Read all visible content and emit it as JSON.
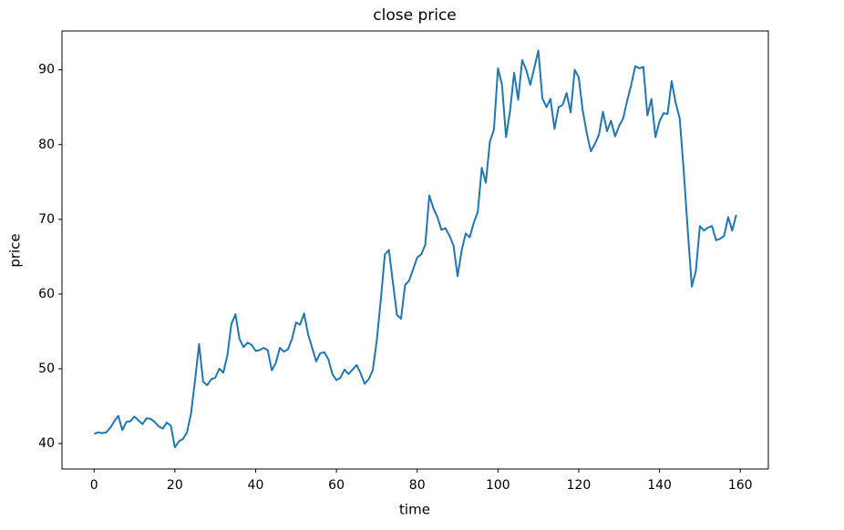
{
  "chart_data": {
    "type": "line",
    "title": "close price",
    "x_label": "time",
    "y_label": "price",
    "color": "#1f77b4",
    "x": [
      0,
      1,
      2,
      3,
      4,
      5,
      6,
      7,
      8,
      9,
      10,
      11,
      12,
      13,
      14,
      15,
      16,
      17,
      18,
      19,
      20,
      21,
      22,
      23,
      24,
      25,
      26,
      27,
      28,
      29,
      30,
      31,
      32,
      33,
      34,
      35,
      36,
      37,
      38,
      39,
      40,
      41,
      42,
      43,
      44,
      45,
      46,
      47,
      48,
      49,
      50,
      51,
      52,
      53,
      54,
      55,
      56,
      57,
      58,
      59,
      60,
      61,
      62,
      63,
      64,
      65,
      66,
      67,
      68,
      69,
      70,
      71,
      72,
      73,
      74,
      75,
      76,
      77,
      78,
      79,
      80,
      81,
      82,
      83,
      84,
      85,
      86,
      87,
      88,
      89,
      90,
      91,
      92,
      93,
      94,
      95,
      96,
      97,
      98,
      99,
      100,
      101,
      102,
      103,
      104,
      105,
      106,
      107,
      108,
      109,
      110,
      111,
      112,
      113,
      114,
      115,
      116,
      117,
      118,
      119,
      120,
      121,
      122,
      123,
      124,
      125,
      126,
      127,
      128,
      129,
      130,
      131,
      132,
      133,
      134,
      135,
      136,
      137,
      138,
      139,
      140,
      141,
      142,
      143,
      144,
      145,
      146,
      147,
      148,
      149,
      150,
      151,
      152,
      153,
      154,
      155,
      156,
      157,
      158,
      159
    ],
    "values": [
      41.3,
      41.5,
      41.4,
      41.5,
      42.1,
      43.0,
      43.7,
      41.8,
      42.9,
      43.0,
      43.6,
      43.1,
      42.6,
      43.4,
      43.3,
      42.9,
      42.3,
      42.0,
      42.8,
      42.4,
      39.5,
      40.3,
      40.6,
      41.5,
      44.0,
      48.5,
      53.3,
      48.3,
      47.8,
      48.6,
      48.8,
      50.0,
      49.5,
      51.8,
      56.0,
      57.3,
      54.0,
      52.9,
      53.5,
      53.2,
      52.4,
      52.5,
      52.8,
      52.5,
      49.8,
      50.8,
      52.8,
      52.3,
      52.6,
      54.0,
      56.2,
      55.9,
      57.4,
      54.6,
      52.8,
      51.0,
      52.1,
      52.2,
      51.3,
      49.3,
      48.5,
      48.8,
      49.9,
      49.3,
      49.9,
      50.5,
      49.4,
      48.0,
      48.6,
      49.8,
      53.8,
      59.3,
      65.3,
      65.9,
      61.5,
      57.2,
      56.7,
      61.2,
      61.8,
      63.3,
      64.9,
      65.3,
      66.6,
      73.2,
      71.5,
      70.3,
      68.6,
      68.8,
      67.8,
      66.5,
      62.4,
      65.8,
      68.1,
      67.6,
      69.5,
      71.0,
      76.9,
      74.9,
      80.4,
      82.0,
      90.2,
      88.0,
      81.0,
      84.5,
      89.6,
      86.0,
      91.3,
      90.0,
      88.0,
      90.3,
      92.6,
      86.2,
      85.0,
      86.1,
      82.1,
      85.0,
      85.3,
      86.9,
      84.3,
      90.0,
      89.0,
      84.5,
      81.5,
      79.1,
      80.1,
      81.3,
      84.4,
      81.8,
      83.2,
      81.1,
      82.5,
      83.5,
      85.9,
      88.0,
      90.5,
      90.2,
      90.4,
      83.9,
      86.1,
      81.0,
      83.1,
      84.2,
      84.1,
      88.5,
      85.6,
      83.5,
      76.5,
      68.5,
      61.0,
      63.1,
      69.1,
      68.5,
      68.9,
      69.1,
      67.2,
      67.4,
      67.8,
      70.3,
      68.5,
      70.6
    ],
    "xlim": [
      -7.95,
      166.95
    ],
    "ylim": [
      36.6,
      95.2
    ],
    "xticks": [
      0,
      20,
      40,
      60,
      80,
      100,
      120,
      140,
      160
    ],
    "yticks": [
      40,
      50,
      60,
      70,
      80,
      90
    ]
  }
}
